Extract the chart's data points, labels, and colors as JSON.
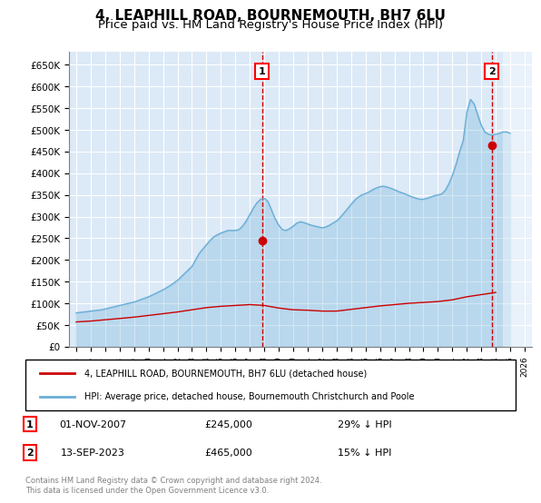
{
  "title": "4, LEAPHILL ROAD, BOURNEMOUTH, BH7 6LU",
  "subtitle": "Price paid vs. HM Land Registry's House Price Index (HPI)",
  "title_fontsize": 11,
  "subtitle_fontsize": 9.5,
  "background_color": "#ffffff",
  "plot_bg_color": "#dce9f7",
  "grid_color": "#ffffff",
  "hpi_color": "#6aafd6",
  "price_color": "#cc0000",
  "dashed_line_color": "#cc0000",
  "ylim": [
    0,
    680000
  ],
  "yticks": [
    0,
    50000,
    100000,
    150000,
    200000,
    250000,
    300000,
    350000,
    400000,
    450000,
    500000,
    550000,
    600000,
    650000
  ],
  "xlim_start": 1994.5,
  "xlim_end": 2026.5,
  "xticks": [
    1995,
    1996,
    1997,
    1998,
    1999,
    2000,
    2001,
    2002,
    2003,
    2004,
    2005,
    2006,
    2007,
    2008,
    2009,
    2010,
    2011,
    2012,
    2013,
    2014,
    2015,
    2016,
    2017,
    2018,
    2019,
    2020,
    2021,
    2022,
    2023,
    2024,
    2025,
    2026
  ],
  "legend_label_red": "4, LEAPHILL ROAD, BOURNEMOUTH, BH7 6LU (detached house)",
  "legend_label_blue": "HPI: Average price, detached house, Bournemouth Christchurch and Poole",
  "sale1_date": 2007.84,
  "sale1_price": 245000,
  "sale1_label": "1",
  "sale1_display": "01-NOV-2007",
  "sale1_amount": "£245,000",
  "sale1_hpi": "29% ↓ HPI",
  "sale2_date": 2023.71,
  "sale2_price": 465000,
  "sale2_label": "2",
  "sale2_display": "13-SEP-2023",
  "sale2_amount": "£465,000",
  "sale2_hpi": "15% ↓ HPI",
  "footer": "Contains HM Land Registry data © Crown copyright and database right 2024.\nThis data is licensed under the Open Government Licence v3.0.",
  "hpi_years": [
    1995,
    1995.25,
    1995.5,
    1995.75,
    1996,
    1996.25,
    1996.5,
    1996.75,
    1997,
    1997.25,
    1997.5,
    1997.75,
    1998,
    1998.25,
    1998.5,
    1998.75,
    1999,
    1999.25,
    1999.5,
    1999.75,
    2000,
    2000.25,
    2000.5,
    2000.75,
    2001,
    2001.25,
    2001.5,
    2001.75,
    2002,
    2002.25,
    2002.5,
    2002.75,
    2003,
    2003.25,
    2003.5,
    2003.75,
    2004,
    2004.25,
    2004.5,
    2004.75,
    2005,
    2005.25,
    2005.5,
    2005.75,
    2006,
    2006.25,
    2006.5,
    2006.75,
    2007,
    2007.25,
    2007.5,
    2007.75,
    2008,
    2008.25,
    2008.5,
    2008.75,
    2009,
    2009.25,
    2009.5,
    2009.75,
    2010,
    2010.25,
    2010.5,
    2010.75,
    2011,
    2011.25,
    2011.5,
    2011.75,
    2012,
    2012.25,
    2012.5,
    2012.75,
    2013,
    2013.25,
    2013.5,
    2013.75,
    2014,
    2014.25,
    2014.5,
    2014.75,
    2015,
    2015.25,
    2015.5,
    2015.75,
    2016,
    2016.25,
    2016.5,
    2016.75,
    2017,
    2017.25,
    2017.5,
    2017.75,
    2018,
    2018.25,
    2018.5,
    2018.75,
    2019,
    2019.25,
    2019.5,
    2019.75,
    2020,
    2020.25,
    2020.5,
    2020.75,
    2021,
    2021.25,
    2021.5,
    2021.75,
    2022,
    2022.25,
    2022.5,
    2022.75,
    2023,
    2023.25,
    2023.5,
    2023.75,
    2024,
    2024.25,
    2024.5,
    2024.75,
    2025
  ],
  "hpi_values": [
    78000,
    79000,
    80000,
    81000,
    82000,
    83000,
    84000,
    85000,
    87000,
    89000,
    91000,
    93000,
    95000,
    97000,
    99000,
    101000,
    103000,
    106000,
    109000,
    112000,
    115000,
    119000,
    123000,
    127000,
    131000,
    136000,
    141000,
    147000,
    153000,
    161000,
    169000,
    177000,
    185000,
    200000,
    215000,
    225000,
    235000,
    245000,
    253000,
    258000,
    262000,
    265000,
    268000,
    268000,
    268000,
    270000,
    278000,
    290000,
    305000,
    320000,
    332000,
    340000,
    342000,
    335000,
    315000,
    295000,
    280000,
    270000,
    268000,
    272000,
    278000,
    285000,
    288000,
    286000,
    283000,
    280000,
    278000,
    276000,
    274000,
    276000,
    280000,
    285000,
    290000,
    298000,
    308000,
    318000,
    328000,
    338000,
    345000,
    350000,
    353000,
    357000,
    362000,
    366000,
    369000,
    370000,
    368000,
    365000,
    362000,
    358000,
    355000,
    352000,
    348000,
    345000,
    342000,
    340000,
    340000,
    342000,
    345000,
    348000,
    350000,
    352000,
    360000,
    375000,
    395000,
    420000,
    450000,
    475000,
    540000,
    570000,
    560000,
    535000,
    510000,
    495000,
    490000,
    488000,
    490000,
    492000,
    495000,
    495000,
    492000
  ],
  "price_years": [
    1995,
    1996,
    1997,
    1998,
    1999,
    2000,
    2001,
    2002,
    2003,
    2004,
    2005,
    2006,
    2007,
    2008,
    2009,
    2010,
    2011,
    2012,
    2013,
    2014,
    2015,
    2016,
    2017,
    2018,
    2019,
    2020,
    2021,
    2022,
    2023,
    2024
  ],
  "price_values": [
    57000,
    59000,
    62000,
    65000,
    68000,
    72000,
    76000,
    80000,
    85000,
    90000,
    93000,
    95000,
    97000,
    95000,
    89000,
    85000,
    84000,
    82000,
    82000,
    86000,
    90000,
    94000,
    97000,
    100000,
    102000,
    104000,
    108000,
    115000,
    120000,
    125000
  ]
}
